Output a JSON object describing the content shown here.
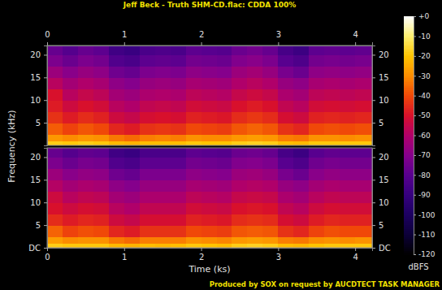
{
  "chart_data": {
    "type": "heatmap",
    "title": "Jeff Beck - Truth SHM-CD.flac: CDDA 100%",
    "x_label": "Time (ks)",
    "y_label": "Frequency (kHz)",
    "footer": "Produced by SOX on request by AUCDTECT TASK MANAGER",
    "xlim": [
      0,
      4.22
    ],
    "xticks": [
      0,
      1,
      2,
      3,
      4
    ],
    "ylim": [
      0,
      22.05
    ],
    "x_bins": [
      0,
      0.2,
      0.4,
      0.6,
      0.8,
      1.0,
      1.2,
      1.4,
      1.6,
      1.8,
      2.0,
      2.2,
      2.4,
      2.6,
      2.8,
      3.0,
      3.2,
      3.4,
      3.6,
      3.8,
      4.0,
      4.22
    ],
    "y_bins": [
      0,
      1,
      2.5,
      5,
      7.5,
      10,
      12.5,
      15,
      17.5,
      20,
      22.05
    ],
    "panels": [
      {
        "yticks": [
          5,
          10,
          15,
          20
        ],
        "values": [
          [
            -18,
            -19,
            -18,
            -19,
            -22,
            -23,
            -21,
            -21,
            -21,
            -19,
            -20,
            -20,
            -18,
            -17,
            -18,
            -21,
            -22,
            -19,
            -19,
            -19,
            -19
          ],
          [
            -28,
            -30,
            -28,
            -29,
            -33,
            -35,
            -32,
            -31,
            -32,
            -29,
            -30,
            -30,
            -28,
            -27,
            -28,
            -32,
            -33,
            -29,
            -29,
            -30,
            -29
          ],
          [
            -37,
            -41,
            -38,
            -40,
            -46,
            -48,
            -44,
            -43,
            -44,
            -40,
            -41,
            -42,
            -38,
            -36,
            -38,
            -44,
            -46,
            -40,
            -39,
            -40,
            -39
          ],
          [
            -44,
            -48,
            -45,
            -47,
            -53,
            -55,
            -51,
            -50,
            -51,
            -47,
            -48,
            -49,
            -45,
            -43,
            -45,
            -51,
            -53,
            -47,
            -46,
            -47,
            -46
          ],
          [
            -48,
            -53,
            -50,
            -52,
            -58,
            -60,
            -56,
            -55,
            -56,
            -52,
            -53,
            -54,
            -50,
            -48,
            -50,
            -56,
            -58,
            -52,
            -51,
            -52,
            -51
          ],
          [
            -50,
            -58,
            -55,
            -57,
            -63,
            -65,
            -61,
            -60,
            -61,
            -57,
            -58,
            -59,
            -55,
            -53,
            -55,
            -61,
            -63,
            -57,
            -56,
            -57,
            -56
          ],
          [
            -58,
            -63,
            -60,
            -62,
            -68,
            -70,
            -66,
            -65,
            -66,
            -62,
            -63,
            -64,
            -60,
            -58,
            -60,
            -66,
            -68,
            -62,
            -61,
            -62,
            -61
          ],
          [
            -65,
            -69,
            -66,
            -68,
            -75,
            -77,
            -72,
            -71,
            -72,
            -68,
            -69,
            -70,
            -65,
            -63,
            -66,
            -73,
            -76,
            -68,
            -67,
            -68,
            -67
          ],
          [
            -72,
            -76,
            -72,
            -74,
            -82,
            -84,
            -79,
            -78,
            -79,
            -74,
            -75,
            -76,
            -71,
            -69,
            -72,
            -80,
            -83,
            -74,
            -73,
            -74,
            -73
          ],
          [
            -77,
            -81,
            -77,
            -79,
            -87,
            -89,
            -84,
            -83,
            -84,
            -79,
            -80,
            -81,
            -76,
            -74,
            -77,
            -85,
            -88,
            -79,
            -78,
            -79,
            -78
          ]
        ]
      },
      {
        "yticks": [
          {
            "value": 0,
            "label": "DC"
          },
          5,
          10,
          15,
          20
        ],
        "values": [
          [
            -18,
            -19,
            -19,
            -19,
            -22,
            -23,
            -21,
            -22,
            -21,
            -19,
            -20,
            -21,
            -18,
            -17,
            -18,
            -21,
            -22,
            -20,
            -19,
            -19,
            -19
          ],
          [
            -27,
            -30,
            -29,
            -29,
            -33,
            -35,
            -32,
            -32,
            -32,
            -29,
            -30,
            -31,
            -28,
            -27,
            -28,
            -32,
            -33,
            -30,
            -29,
            -30,
            -29
          ],
          [
            -36,
            -41,
            -39,
            -40,
            -46,
            -48,
            -44,
            -44,
            -44,
            -40,
            -41,
            -42,
            -38,
            -37,
            -38,
            -44,
            -46,
            -41,
            -39,
            -40,
            -40
          ],
          [
            -45,
            -48,
            -46,
            -47,
            -53,
            -55,
            -51,
            -51,
            -51,
            -47,
            -48,
            -49,
            -45,
            -44,
            -45,
            -51,
            -53,
            -48,
            -46,
            -47,
            -47
          ],
          [
            -50,
            -53,
            -51,
            -52,
            -58,
            -60,
            -56,
            -56,
            -56,
            -52,
            -53,
            -54,
            -50,
            -49,
            -50,
            -56,
            -58,
            -53,
            -51,
            -52,
            -52
          ],
          [
            -53,
            -58,
            -56,
            -57,
            -63,
            -65,
            -61,
            -61,
            -61,
            -57,
            -58,
            -59,
            -55,
            -54,
            -55,
            -61,
            -63,
            -58,
            -56,
            -57,
            -57
          ],
          [
            -59,
            -63,
            -61,
            -62,
            -68,
            -70,
            -66,
            -66,
            -66,
            -62,
            -63,
            -64,
            -60,
            -59,
            -60,
            -66,
            -68,
            -63,
            -61,
            -62,
            -62
          ],
          [
            -65,
            -69,
            -67,
            -68,
            -75,
            -77,
            -72,
            -72,
            -72,
            -68,
            -69,
            -70,
            -65,
            -64,
            -66,
            -73,
            -76,
            -69,
            -67,
            -68,
            -68
          ],
          [
            -72,
            -76,
            -73,
            -74,
            -82,
            -84,
            -79,
            -79,
            -79,
            -74,
            -75,
            -76,
            -71,
            -70,
            -72,
            -80,
            -83,
            -75,
            -73,
            -74,
            -74
          ],
          [
            -77,
            -81,
            -78,
            -79,
            -87,
            -89,
            -84,
            -84,
            -84,
            -79,
            -80,
            -81,
            -76,
            -75,
            -77,
            -85,
            -88,
            -80,
            -78,
            -79,
            -79
          ]
        ]
      }
    ],
    "colorbar": {
      "label": "dBFS",
      "range": [
        -120,
        0
      ],
      "ticks": [
        {
          "value": 0,
          "label": "+0"
        },
        -10,
        -20,
        -30,
        -40,
        -50,
        -60,
        -70,
        -80,
        -90,
        -100,
        -110,
        -120
      ]
    }
  }
}
